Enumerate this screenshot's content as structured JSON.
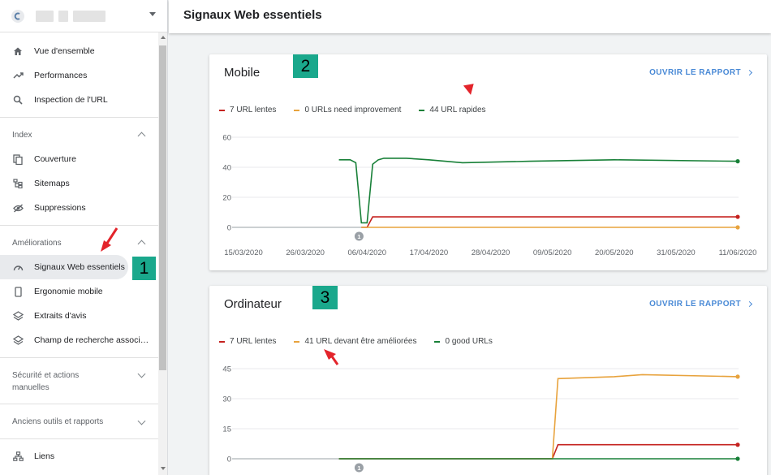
{
  "page": {
    "title": "Signaux Web essentiels"
  },
  "sidebar": {
    "top_items": [
      {
        "label": "Vue d'ensemble",
        "icon": "home-icon"
      },
      {
        "label": "Performances",
        "icon": "trending-up-icon"
      },
      {
        "label": "Inspection de l'URL",
        "icon": "search-icon"
      }
    ],
    "index": {
      "heading": "Index",
      "items": [
        {
          "label": "Couverture",
          "icon": "copy-icon"
        },
        {
          "label": "Sitemaps",
          "icon": "sitemap-icon"
        },
        {
          "label": "Suppressions",
          "icon": "eye-off-icon"
        }
      ]
    },
    "ameliorations": {
      "heading": "Améliorations",
      "items": [
        {
          "label": "Signaux Web essentiels",
          "icon": "gauge-icon"
        },
        {
          "label": "Ergonomie mobile",
          "icon": "phone-icon"
        },
        {
          "label": "Extraits d'avis",
          "icon": "layers-icon"
        },
        {
          "label": "Champ de recherche associ…",
          "icon": "layers-icon"
        }
      ]
    },
    "securite_heading": "Sécurité et actions manuelles",
    "anciens_heading": "Anciens outils et rapports",
    "liens_label": "Liens",
    "badge": "1"
  },
  "mobile": {
    "title": "Mobile",
    "badge": "2",
    "link": "OUVRIR LE RAPPORT",
    "legend": [
      {
        "label": "7 URL lentes",
        "color": "#c5221f"
      },
      {
        "label": "0 URLs need improvement",
        "color": "#e8a33d"
      },
      {
        "label": "44 URL rapides",
        "color": "#188038"
      }
    ],
    "annotation_marker": "1"
  },
  "desktop": {
    "title": "Ordinateur",
    "badge": "3",
    "link": "OUVRIR LE RAPPORT",
    "legend": [
      {
        "label": "7 URL lentes",
        "color": "#c5221f"
      },
      {
        "label": "41 URL devant être améliorées",
        "color": "#e8a33d"
      },
      {
        "label": "0 good URLs",
        "color": "#188038"
      }
    ],
    "annotation_marker": "1"
  },
  "chart_data": [
    {
      "type": "line",
      "title": "Mobile",
      "x_tick_labels": [
        "15/03/2020",
        "26/03/2020",
        "06/04/2020",
        "17/04/2020",
        "28/04/2020",
        "09/05/2020",
        "20/05/2020",
        "31/05/2020",
        "11/06/2020"
      ],
      "ylim": [
        0,
        60
      ],
      "y_ticks": [
        0,
        20,
        40,
        60
      ],
      "x": [
        "01/04/2020",
        "03/04/2020",
        "04/04/2020",
        "05/04/2020",
        "06/04/2020",
        "07/04/2020",
        "08/04/2020",
        "09/04/2020",
        "13/04/2020",
        "17/04/2020",
        "23/04/2020",
        "05/05/2020",
        "20/05/2020",
        "11/06/2020"
      ],
      "series": [
        {
          "name": "7 URL lentes",
          "color": "#c5221f",
          "values": [
            null,
            null,
            null,
            0,
            0,
            7,
            7,
            7,
            7,
            7,
            7,
            7,
            7,
            7
          ]
        },
        {
          "name": "0 URLs need improvement",
          "color": "#e8a33d",
          "values": [
            null,
            null,
            null,
            0,
            0,
            0,
            0,
            0,
            0,
            0,
            0,
            0,
            0,
            0
          ]
        },
        {
          "name": "44 URL rapides",
          "color": "#188038",
          "values": [
            45,
            45,
            43,
            3,
            3,
            42,
            45,
            46,
            46,
            45,
            43,
            44,
            45,
            44
          ]
        }
      ],
      "grid": true,
      "legend": "top-left"
    },
    {
      "type": "line",
      "title": "Ordinateur",
      "ylim": [
        0,
        45
      ],
      "y_ticks": [
        0,
        15,
        30,
        45
      ],
      "x": [
        "01/04/2020",
        "09/05/2020",
        "10/05/2020",
        "20/05/2020",
        "25/05/2020",
        "11/06/2020"
      ],
      "series": [
        {
          "name": "7 URL lentes",
          "color": "#c5221f",
          "values": [
            0,
            0,
            7,
            7,
            7,
            7
          ]
        },
        {
          "name": "41 URL devant être améliorées",
          "color": "#e8a33d",
          "values": [
            0,
            0,
            40,
            41,
            42,
            41
          ]
        },
        {
          "name": "0 good URLs",
          "color": "#188038",
          "values": [
            0,
            0,
            0,
            0,
            0,
            0
          ]
        }
      ],
      "grid": true,
      "legend": "top-left"
    }
  ]
}
